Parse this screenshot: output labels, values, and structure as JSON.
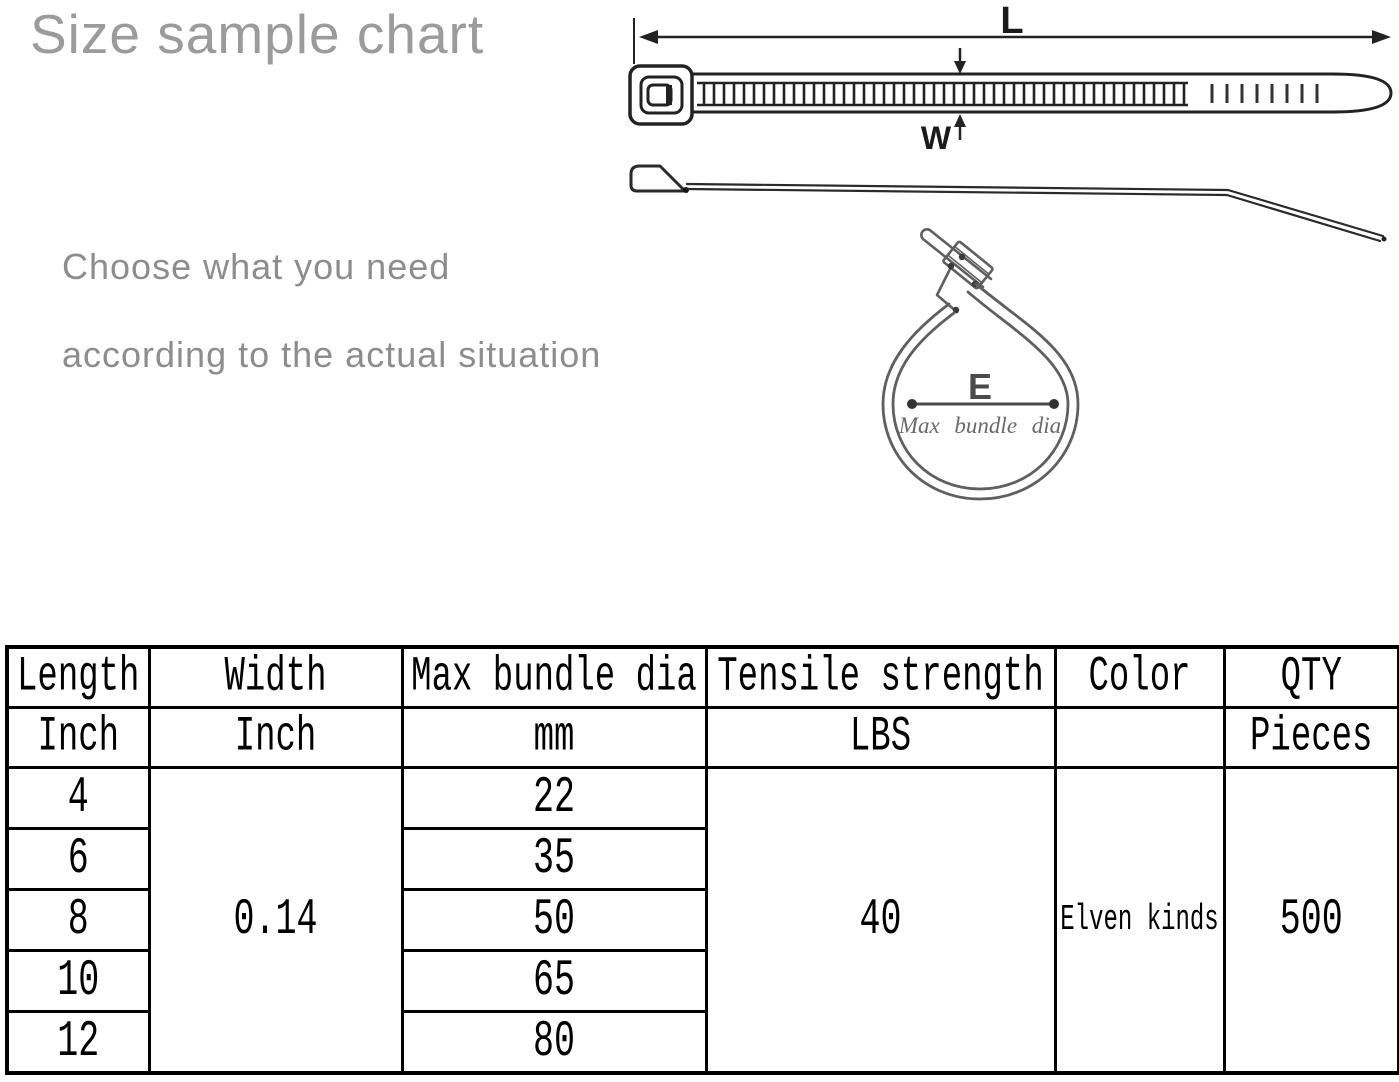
{
  "title": "Size sample chart",
  "subtitle_line1": "Choose what you need",
  "subtitle_line2": "according to the actual situation",
  "diagram": {
    "length_label": "L",
    "width_label": "W",
    "diameter_label": "E",
    "diameter_caption": "Max bundle dia"
  },
  "table": {
    "col_headers": [
      "Length",
      "Width",
      "Max bundle dia",
      "Tensile strength",
      "Color",
      "QTY"
    ],
    "col_units": [
      "Inch",
      "Inch",
      "mm",
      "LBS",
      "",
      "Pieces"
    ],
    "rows_length": [
      "4",
      "6",
      "8",
      "10",
      "12"
    ],
    "rows_max_bundle_dia": [
      "22",
      "35",
      "50",
      "65",
      "80"
    ],
    "width_inch": "0.14",
    "tensile_lbs": "40",
    "color_kinds": "Elven kinds",
    "qty_pieces": "500"
  },
  "colors": {
    "title_gray": "#9b9b9b",
    "subtitle_gray": "#8d8d8d",
    "drawing_stroke": "#222222",
    "loop_stroke": "#5f5f5f",
    "dimension_gray": "#4a4a4a",
    "table_border": "#000000"
  }
}
